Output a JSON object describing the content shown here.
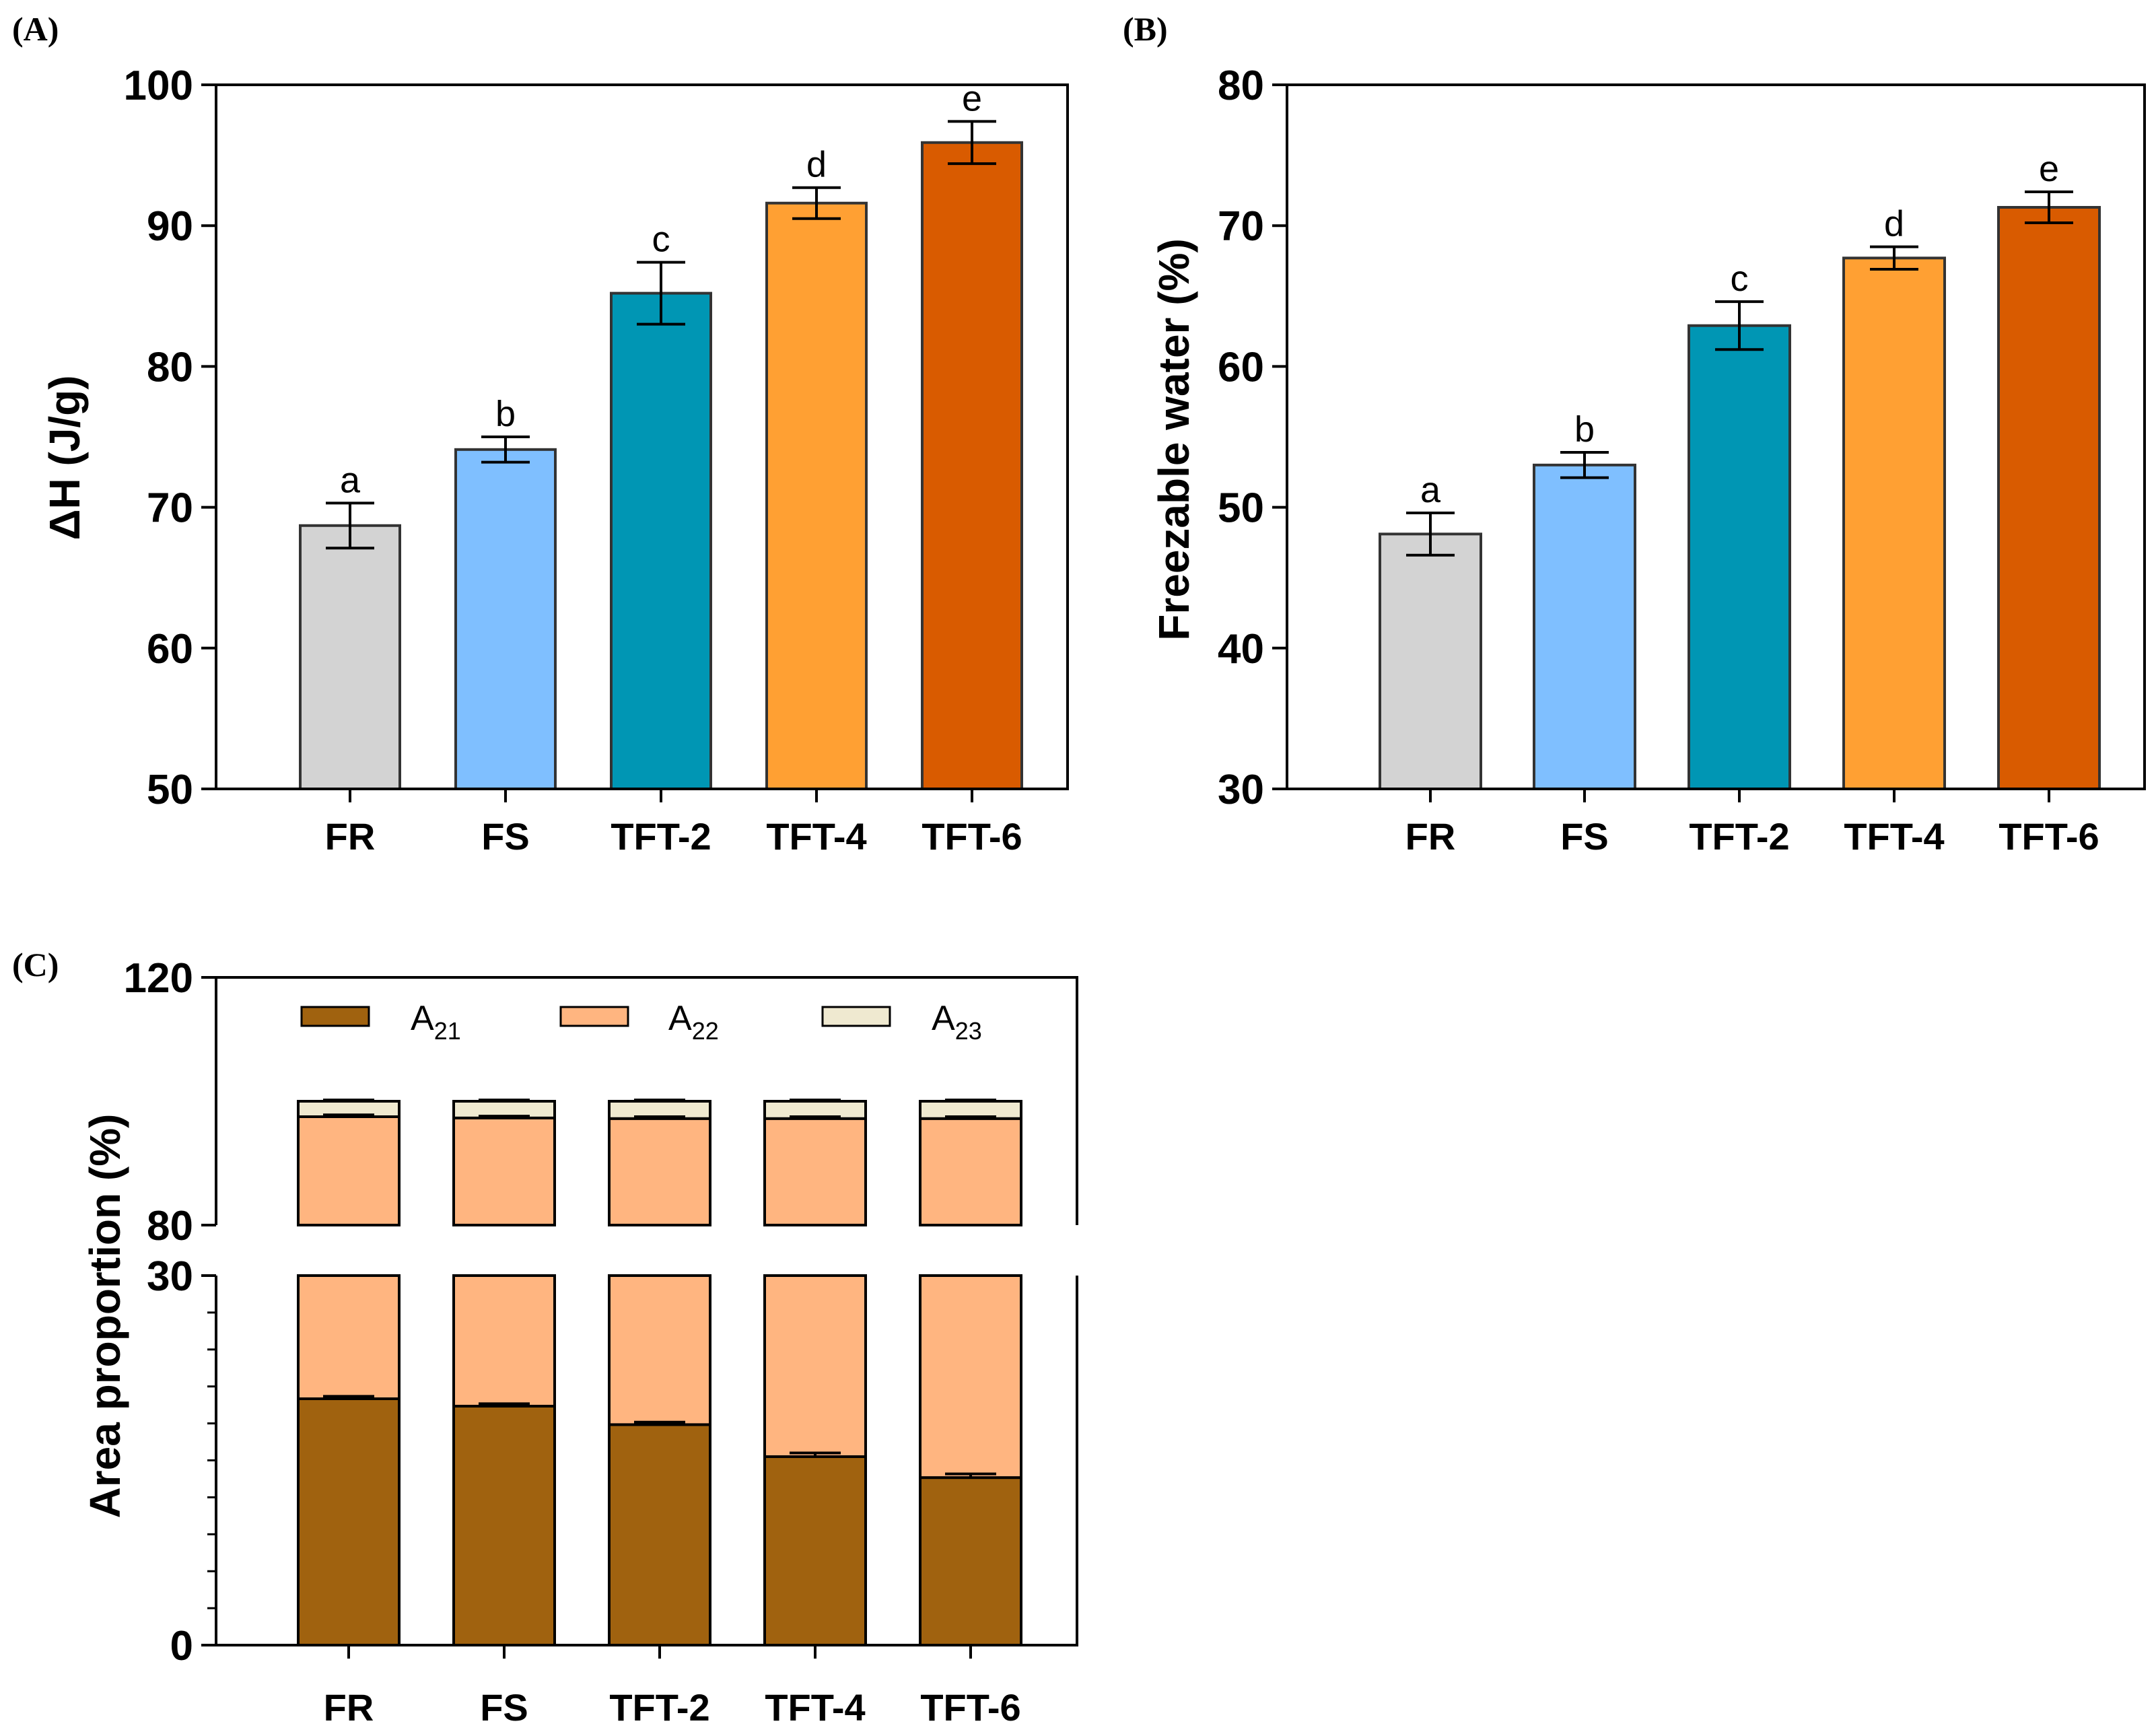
{
  "chart_data": [
    {
      "panel": "(A)",
      "type": "bar",
      "categories": [
        "FR",
        "FS",
        "TFT-2",
        "TFT-4",
        "TFT-6"
      ],
      "values": [
        68.7,
        74.1,
        85.2,
        91.6,
        95.9
      ],
      "errors": [
        1.6,
        0.9,
        2.2,
        1.1,
        1.5
      ],
      "significance": [
        "a",
        "b",
        "c",
        "d",
        "e"
      ],
      "colors": [
        "#d3d3d3",
        "#7fbfff",
        "#0096b4",
        "#ffa033",
        "#d95b00"
      ],
      "title": "",
      "xlabel": "",
      "ylabel": "ΔH (J/g)",
      "ylim": [
        50,
        100
      ],
      "yticks": [
        "50",
        "60",
        "70",
        "80",
        "90",
        "100"
      ]
    },
    {
      "panel": "(B)",
      "type": "bar",
      "categories": [
        "FR",
        "FS",
        "TFT-2",
        "TFT-4",
        "TFT-6"
      ],
      "values": [
        48.1,
        53.0,
        62.9,
        67.7,
        71.3
      ],
      "errors": [
        1.5,
        0.9,
        1.7,
        0.8,
        1.1
      ],
      "significance": [
        "a",
        "b",
        "c",
        "d",
        "e"
      ],
      "colors": [
        "#d3d3d3",
        "#7fbfff",
        "#0096b4",
        "#ffa033",
        "#d95b00"
      ],
      "title": "",
      "xlabel": "",
      "ylabel": "Freezable water (%)",
      "ylim": [
        30,
        80
      ],
      "yticks": [
        "30",
        "40",
        "50",
        "60",
        "70",
        "80"
      ]
    },
    {
      "panel": "(C)",
      "type": "bar",
      "stacked": true,
      "broken_axis": {
        "lower_range": [
          0,
          30
        ],
        "upper_range": [
          80,
          120
        ]
      },
      "categories": [
        "FR",
        "FS",
        "TFT-2",
        "TFT-4",
        "TFT-6"
      ],
      "series": [
        {
          "name": "A21",
          "label_main": "A",
          "label_sub": "21",
          "color": "#a0620f",
          "values": [
            20.0,
            19.4,
            17.9,
            15.3,
            13.6
          ],
          "errors": [
            0.2,
            0.2,
            0.2,
            0.3,
            0.3
          ]
        },
        {
          "name": "A22",
          "label_main": "A",
          "label_sub": "22",
          "color": "#ffb580",
          "values": [
            77.5,
            77.9,
            79.3,
            81.9,
            83.6
          ],
          "errors": [
            0.3,
            0.3,
            0.3,
            0.3,
            0.3
          ]
        },
        {
          "name": "A23",
          "label_main": "A",
          "label_sub": "23",
          "color": "#efe9d0",
          "values": [
            2.5,
            2.7,
            2.8,
            2.8,
            2.8
          ],
          "errors": [
            0.2,
            0.2,
            0.2,
            0.2,
            0.2
          ]
        }
      ],
      "title": "",
      "xlabel": "",
      "ylabel": "Area proportion (%)",
      "yticks_lower": [
        "0",
        "30"
      ],
      "yticks_upper": [
        "80",
        "120"
      ]
    }
  ]
}
